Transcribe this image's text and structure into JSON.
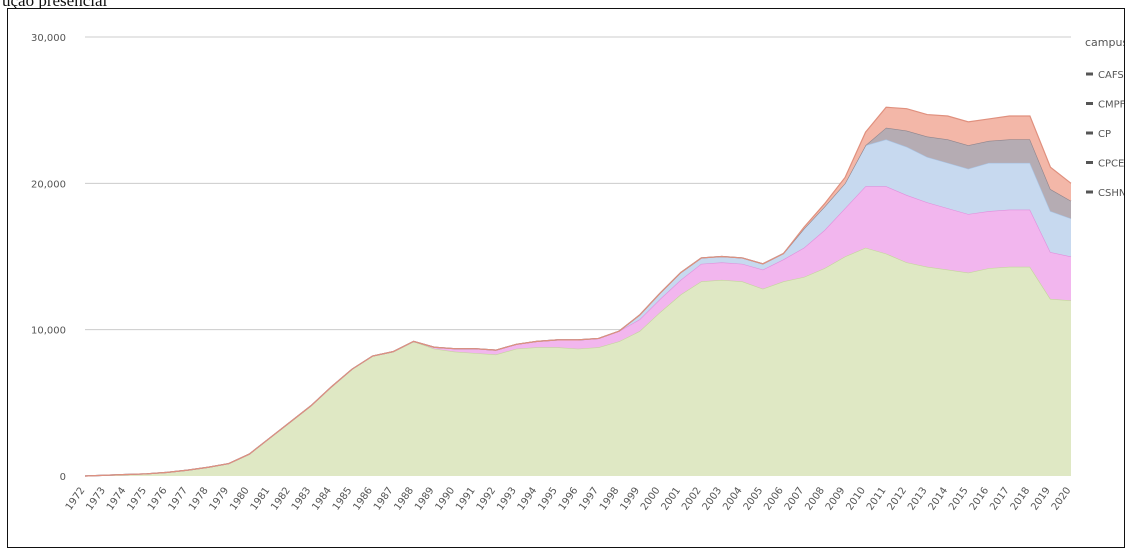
{
  "caption": "ução presencial",
  "chart_data": {
    "type": "area",
    "stacked": true,
    "x": [
      "1972",
      "1973",
      "1974",
      "1975",
      "1976",
      "1977",
      "1978",
      "1979",
      "1980",
      "1981",
      "1982",
      "1983",
      "1984",
      "1985",
      "1986",
      "1987",
      "1988",
      "1989",
      "1990",
      "1991",
      "1992",
      "1993",
      "1994",
      "1995",
      "1996",
      "1997",
      "1998",
      "1999",
      "2000",
      "2001",
      "2002",
      "2003",
      "2004",
      "2005",
      "2006",
      "2007",
      "2008",
      "2009",
      "2010",
      "2011",
      "2012",
      "2013",
      "2014",
      "2015",
      "2016",
      "2017",
      "2018",
      "2019",
      "2020"
    ],
    "y_ticks": [
      0,
      10000,
      20000,
      30000
    ],
    "y_tick_labels": [
      "0",
      "10,000",
      "20,000",
      "30,000"
    ],
    "ylim": [
      0,
      30000
    ],
    "grid": true,
    "legend": {
      "title": "campus",
      "position": "right"
    },
    "series": [
      {
        "name": "",
        "color": "#dfe8c4",
        "stroke": "#c4d59c",
        "values": [
          0,
          50,
          100,
          150,
          250,
          400,
          600,
          850,
          1500,
          2600,
          3700,
          4800,
          6100,
          7300,
          8200,
          8500,
          9200,
          8700,
          8500,
          8400,
          8300,
          8700,
          8800,
          8800,
          8700,
          8800,
          9200,
          9900,
          11200,
          12400,
          13300,
          13400,
          13300,
          12800,
          13300,
          13600,
          14200,
          15000,
          15600,
          15200,
          14600,
          14300,
          14100,
          13900,
          14200,
          14300,
          14300,
          12100,
          12000
        ]
      },
      {
        "name": "",
        "color": "#f2b6ee",
        "stroke": "#e08fdc",
        "values": [
          0,
          0,
          0,
          0,
          0,
          0,
          0,
          0,
          0,
          0,
          0,
          0,
          0,
          0,
          0,
          0,
          0,
          100,
          200,
          300,
          300,
          300,
          400,
          500,
          600,
          600,
          700,
          800,
          900,
          1000,
          1200,
          1200,
          1200,
          1300,
          1500,
          2000,
          2600,
          3300,
          4200,
          4600,
          4600,
          4400,
          4200,
          4000,
          3900,
          3900,
          3900,
          3200,
          3000
        ]
      },
      {
        "name": "",
        "color": "#c7d9ef",
        "stroke": "#a9c3e3",
        "values": [
          0,
          0,
          0,
          0,
          0,
          0,
          0,
          0,
          0,
          0,
          0,
          0,
          0,
          0,
          0,
          0,
          0,
          0,
          0,
          0,
          0,
          0,
          0,
          0,
          0,
          0,
          0,
          300,
          400,
          500,
          400,
          400,
          400,
          400,
          400,
          1300,
          1600,
          1700,
          2800,
          3200,
          3300,
          3100,
          3100,
          3100,
          3300,
          3200,
          3200,
          2800,
          2600
        ]
      },
      {
        "name": "",
        "color": "#b5acb3",
        "stroke": "#8f858d",
        "values": [
          0,
          0,
          0,
          0,
          0,
          0,
          0,
          0,
          0,
          0,
          0,
          0,
          0,
          0,
          0,
          0,
          0,
          0,
          0,
          0,
          0,
          0,
          0,
          0,
          0,
          0,
          0,
          0,
          0,
          0,
          0,
          0,
          0,
          0,
          0,
          0,
          0,
          0,
          0,
          800,
          1100,
          1400,
          1600,
          1600,
          1500,
          1600,
          1600,
          1500,
          1200
        ]
      },
      {
        "name": "",
        "color": "#f3b7a8",
        "stroke": "#e0907e",
        "values": [
          0,
          0,
          0,
          0,
          0,
          0,
          0,
          0,
          0,
          0,
          0,
          0,
          0,
          0,
          0,
          0,
          0,
          0,
          0,
          0,
          0,
          0,
          0,
          0,
          0,
          0,
          0,
          0,
          0,
          0,
          0,
          0,
          0,
          0,
          0,
          100,
          200,
          400,
          900,
          1400,
          1500,
          1500,
          1600,
          1600,
          1500,
          1600,
          1600,
          1500,
          1200
        ]
      }
    ],
    "legend_entries": [
      {
        "label": "CAFS",
        "color": "#555555"
      },
      {
        "label": "CMPF",
        "color": "#555555"
      },
      {
        "label": "CP",
        "color": "#555555"
      },
      {
        "label": "CPCE",
        "color": "#555555"
      },
      {
        "label": "CSHN",
        "color": "#555555"
      }
    ]
  }
}
